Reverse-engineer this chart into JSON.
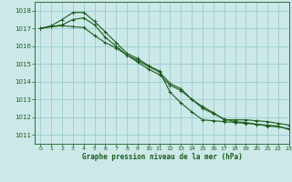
{
  "title": "Graphe pression niveau de la mer (hPa)",
  "bg_color": "#cce8e8",
  "grid_color": "#99cccc",
  "line_color": "#1a5c1a",
  "xlim": [
    -0.5,
    23
  ],
  "ylim": [
    1010.5,
    1018.5
  ],
  "yticks": [
    1011,
    1012,
    1013,
    1014,
    1015,
    1016,
    1017,
    1018
  ],
  "xticks": [
    0,
    1,
    2,
    3,
    4,
    5,
    6,
    7,
    8,
    9,
    10,
    11,
    12,
    13,
    14,
    15,
    16,
    17,
    18,
    19,
    20,
    21,
    22,
    23
  ],
  "series": [
    [
      1017.0,
      1017.1,
      1017.2,
      1017.5,
      1017.6,
      1017.2,
      1016.5,
      1016.0,
      1015.5,
      1015.1,
      1014.7,
      1014.4,
      1013.8,
      1013.5,
      1013.0,
      1012.5,
      1012.2,
      1011.9,
      1011.75,
      1011.7,
      1011.6,
      1011.5,
      1011.45,
      1011.35
    ],
    [
      1017.0,
      1017.15,
      1017.5,
      1017.9,
      1017.9,
      1017.4,
      1016.8,
      1016.2,
      1015.6,
      1015.3,
      1014.9,
      1014.6,
      1013.4,
      1012.8,
      1012.3,
      1011.85,
      1011.8,
      1011.75,
      1011.7,
      1011.65,
      1011.6,
      1011.55,
      1011.5,
      1011.3
    ],
    [
      1017.0,
      1017.1,
      1017.15,
      1017.1,
      1017.05,
      1016.6,
      1016.2,
      1015.9,
      1015.5,
      1015.2,
      1014.85,
      1014.55,
      1013.9,
      1013.6,
      1013.0,
      1012.6,
      1012.25,
      1011.85,
      1011.85,
      1011.85,
      1011.8,
      1011.75,
      1011.65,
      1011.55
    ]
  ]
}
